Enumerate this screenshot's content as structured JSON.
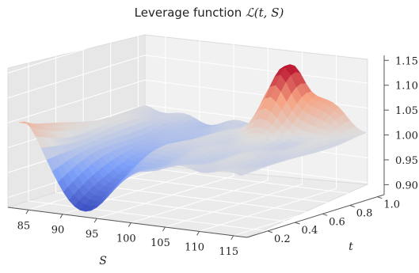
{
  "chart_data": {
    "type": "surface3d",
    "title_text": "Leverage function ",
    "title_math": "ℒ(t, S)",
    "xlabel": "S",
    "ylabel": "t",
    "zlabel": "",
    "x_ticks": [
      "85",
      "90",
      "95",
      "100",
      "105",
      "110",
      "115"
    ],
    "y_ticks": [
      "0.2",
      "0.4",
      "0.6",
      "0.8",
      "1.0"
    ],
    "z_ticks": [
      "0.90",
      "0.95",
      "1.00",
      "1.05",
      "1.10",
      "1.15"
    ],
    "xlim": [
      82,
      117
    ],
    "ylim": [
      0.05,
      1.05
    ],
    "zlim": [
      0.88,
      1.16
    ],
    "colormap": "coolwarm",
    "grid": true,
    "surface_features": {
      "baseline": 1.0,
      "deep_valley": {
        "S": 92.5,
        "t": 0.1,
        "value": 0.88
      },
      "left_edge_high": {
        "S": 84,
        "t": 0.1,
        "value": 1.055
      },
      "peak": {
        "S": 104.5,
        "t": 0.95,
        "value": 1.11
      },
      "secondary_ridge": {
        "S": 108,
        "t": 1.0,
        "value": 1.06
      }
    }
  }
}
